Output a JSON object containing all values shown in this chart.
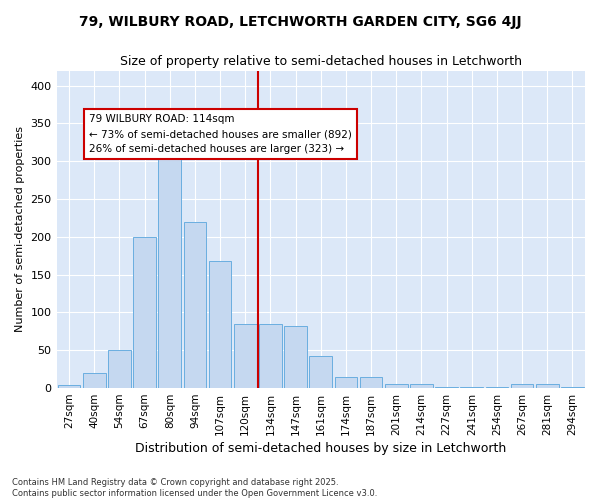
{
  "title1": "79, WILBURY ROAD, LETCHWORTH GARDEN CITY, SG6 4JJ",
  "title2": "Size of property relative to semi-detached houses in Letchworth",
  "xlabel": "Distribution of semi-detached houses by size in Letchworth",
  "ylabel": "Number of semi-detached properties",
  "categories": [
    "27sqm",
    "40sqm",
    "54sqm",
    "67sqm",
    "80sqm",
    "94sqm",
    "107sqm",
    "120sqm",
    "134sqm",
    "147sqm",
    "161sqm",
    "174sqm",
    "187sqm",
    "201sqm",
    "214sqm",
    "227sqm",
    "241sqm",
    "254sqm",
    "267sqm",
    "281sqm",
    "294sqm"
  ],
  "values": [
    4,
    20,
    50,
    200,
    322,
    220,
    168,
    85,
    85,
    82,
    42,
    15,
    15,
    5,
    5,
    2,
    2,
    1,
    5,
    5,
    2
  ],
  "bar_color": "#c5d8f0",
  "bar_edge_color": "#6aaee0",
  "vline_pos": 7.5,
  "vline_label": "79 WILBURY ROAD: 114sqm",
  "annotation_line1": "← 73% of semi-detached houses are smaller (892)",
  "annotation_line2": "26% of semi-detached houses are larger (323) →",
  "box_color": "#cc0000",
  "ylim": [
    0,
    420
  ],
  "yticks": [
    0,
    50,
    100,
    150,
    200,
    250,
    300,
    350,
    400
  ],
  "plot_bg_color": "#dce8f8",
  "fig_bg_color": "#ffffff",
  "grid_color": "#ffffff",
  "footer1": "Contains HM Land Registry data © Crown copyright and database right 2025.",
  "footer2": "Contains public sector information licensed under the Open Government Licence v3.0."
}
